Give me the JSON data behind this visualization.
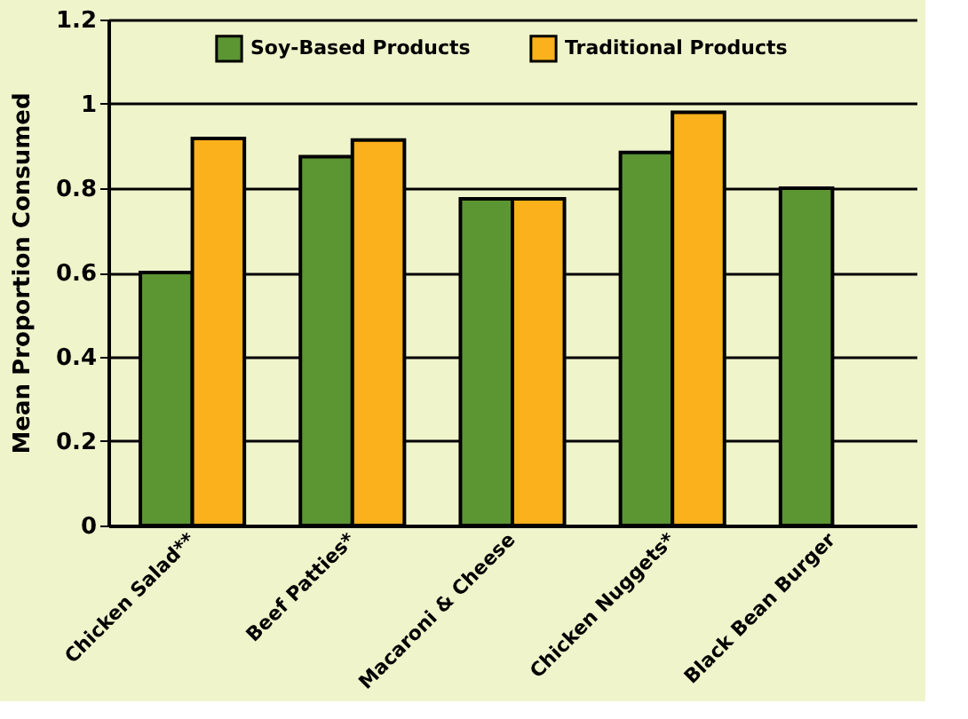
{
  "chart_data": {
    "type": "bar",
    "ylabel": "Mean Proportion Consumed",
    "categories": [
      "Chicken Salad**",
      "Beef Patties*",
      "Macaroni & Cheese",
      "Chicken Nuggets*",
      "Black Bean Burger"
    ],
    "series": [
      {
        "name": "Soy-Based Products",
        "color": "#5c9633",
        "values": [
          0.6,
          0.875,
          0.775,
          0.885,
          0.8
        ]
      },
      {
        "name": "Traditional Products",
        "color": "#fbb11b",
        "values": [
          0.918,
          0.914,
          0.775,
          0.98,
          null
        ]
      }
    ],
    "ylim": [
      0,
      1.2
    ],
    "yticks": [
      0,
      0.2,
      0.4,
      0.6,
      0.8,
      1,
      1.2
    ],
    "grid": "y",
    "legend": "top"
  }
}
